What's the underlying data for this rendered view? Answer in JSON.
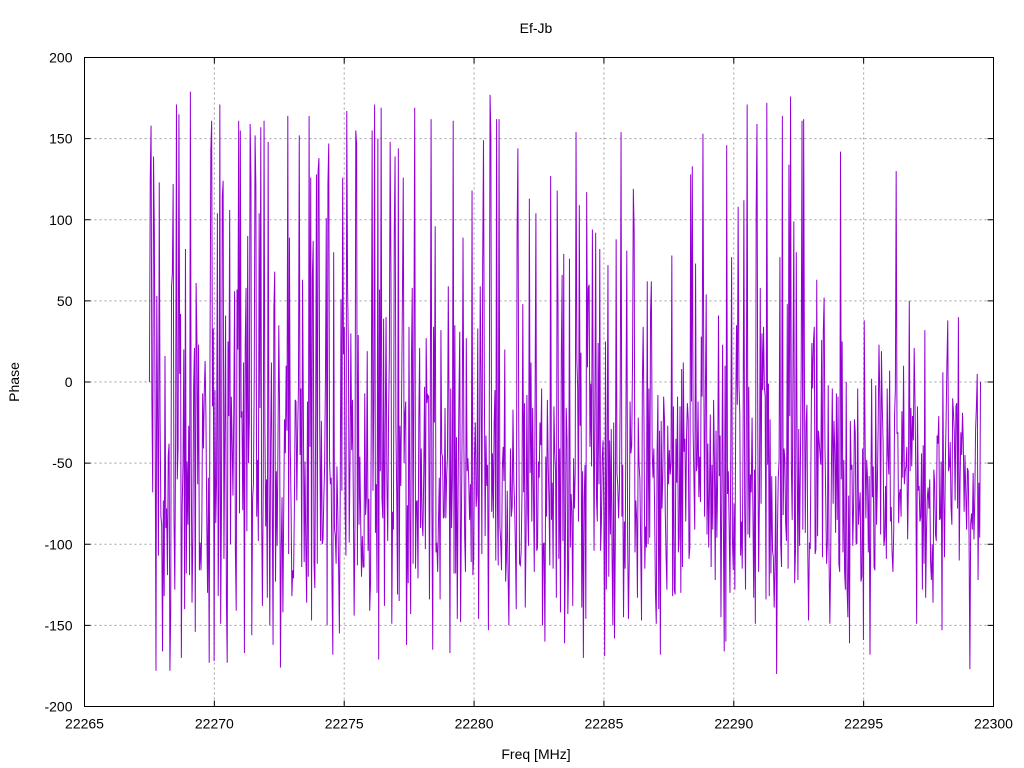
{
  "chart_data": {
    "type": "line",
    "title": "Ef-Jb",
    "xlabel": "Freq [MHz]",
    "ylabel": "Phase",
    "xlim": [
      22265,
      22300
    ],
    "ylim": [
      -200,
      200
    ],
    "x_ticks": [
      22265,
      22270,
      22275,
      22280,
      22285,
      22290,
      22295,
      22300
    ],
    "y_ticks": [
      -200,
      -150,
      -100,
      -50,
      0,
      50,
      100,
      150,
      200
    ],
    "grid": true,
    "legend": "none",
    "series": [
      {
        "color": "#9400d3",
        "x_start": 22267.5,
        "x_end": 22299.5,
        "values": [
          0,
          126,
          158,
          -10,
          -68,
          139,
          92,
          -30,
          -178,
          53,
          -23,
          -107,
          123,
          -22,
          -83,
          -88,
          -166,
          -73,
          -132,
          16,
          -90,
          -78,
          -119,
          -45,
          -38,
          -178,
          -141,
          59,
          67,
          122,
          -83,
          -128,
          -31,
          171,
          -60,
          -41,
          165,
          5,
          42,
          -170,
          -77,
          -51,
          20,
          -140,
          82,
          -118,
          -49,
          -88,
          -27,
          -119,
          179,
          -45,
          -136,
          -97,
          -2,
          21,
          -154,
          61,
          26,
          -63,
          23,
          -116,
          -99,
          -116,
          -87,
          -7,
          -41,
          -6,
          13,
          -21,
          -84,
          -130,
          -59,
          -173,
          20,
          143,
          161,
          -15,
          33,
          -172,
          -5,
          -87,
          -60,
          104,
          -132,
          -68,
          171,
          -149,
          -78,
          114,
          124,
          -109,
          -31,
          41,
          -133,
          -173,
          25,
          -21,
          106,
          -100,
          -9,
          -36,
          -70,
          -18,
          56,
          -105,
          -141,
          57,
          20,
          161,
          -81,
          155,
          -22,
          -18,
          -79,
          12,
          -167,
          23,
          58,
          -92,
          90,
          -50,
          -24,
          159,
          124,
          -156,
          -72,
          -63,
          2,
          152,
          121,
          -83,
          -48,
          -98,
          104,
          -16,
          157,
          -79,
          -138,
          -63,
          161,
          -28,
          -89,
          -60,
          -133,
          148,
          -53,
          -150,
          -36,
          12,
          -73,
          -162,
          45,
          68,
          -123,
          -55,
          -101,
          -38,
          35,
          -20,
          -176,
          -103,
          -71,
          -142,
          -79,
          -23,
          -44,
          10,
          -30,
          164,
          -106,
          89,
          -39,
          -77,
          -132,
          -116,
          -121,
          -79,
          -11,
          -12,
          -73,
          -31,
          -4,
          152,
          -45,
          -4,
          -114,
          63,
          -17,
          -111,
          -49,
          -103,
          -136,
          -12,
          -120,
          164,
          -40,
          126,
          -147,
          65,
          87,
          -111,
          -127,
          -23,
          128,
          -112,
          130,
          138,
          -27,
          -98,
          -24,
          -100,
          -97,
          -72,
          -51,
          4,
          101,
          -150,
          122,
          147,
          -49,
          -63,
          -59,
          -125,
          -168,
          80,
          -90,
          -95,
          -112,
          -52,
          -79,
          -112,
          -155,
          -71,
          51,
          -67,
          126,
          17,
          34,
          -78,
          -107,
          167,
          59,
          20,
          -99,
          -48,
          30,
          -42,
          -11,
          -70,
          -144,
          -89,
          155,
          147,
          -113,
          29,
          -88,
          -46,
          -86,
          -120,
          -95,
          -114,
          -114,
          -7,
          -82,
          -71,
          19,
          -104,
          -72,
          -141,
          -124,
          -14,
          155,
          -67,
          -11,
          171,
          -93,
          -63,
          -130,
          150,
          -171,
          57,
          -55,
          169,
          -72,
          -84,
          39,
          -138,
          -28,
          40,
          -60,
          -98,
          -24,
          16,
          148,
          66,
          -149,
          -80,
          -91,
          90,
          139,
          -26,
          -68,
          -131,
          144,
          -135,
          -27,
          -64,
          -7,
          53,
          126,
          -50,
          -20,
          -12,
          -162,
          -76,
          -124,
          34,
          -82,
          -143,
          14,
          58,
          -112,
          24,
          169,
          -115,
          -74,
          -73,
          -121,
          -23,
          21,
          -90,
          -41,
          -86,
          -95,
          -57,
          -3,
          -103,
          27,
          -13,
          -8,
          -9,
          -134,
          -15,
          162,
          -79,
          -165,
          34,
          -25,
          96,
          -105,
          -99,
          -117,
          -86,
          -59,
          -134,
          32,
          -44,
          -46,
          -84,
          -83,
          -16,
          -84,
          -58,
          -46,
          59,
          -21,
          -167,
          -4,
          -90,
          -59,
          161,
          -118,
          35,
          -118,
          -34,
          -146,
          -64,
          -10,
          31,
          -148,
          -85,
          -23,
          89,
          -35,
          -96,
          -117,
          27,
          -55,
          -47,
          -61,
          -85,
          -63,
          -111,
          118,
          -119,
          -109,
          -46,
          -25,
          -77,
          -69,
          33,
          -146,
          -56,
          59,
          3,
          -106,
          73,
          149,
          4,
          -95,
          -33,
          -64,
          -51,
          -153,
          -39,
          177,
          152,
          -80,
          -44,
          -84,
          -26,
          -5,
          -110,
          162,
          -75,
          -113,
          162,
          -89,
          -98,
          -116,
          -53,
          -40,
          -61,
          20,
          -123,
          -109,
          -67,
          -118,
          -150,
          -83,
          -41,
          -83,
          -77,
          -17,
          -61,
          -76,
          -103,
          -140,
          91,
          144,
          -21,
          -112,
          -113,
          -104,
          -69,
          48,
          -68,
          -13,
          -139,
          -93,
          -8,
          -80,
          -101,
          113,
          -56,
          12,
          -86,
          -16,
          -66,
          -117,
          -12,
          104,
          -104,
          -102,
          -49,
          -59,
          -25,
          -39,
          -4,
          -150,
          -100,
          -99,
          -160,
          -46,
          -83,
          -11,
          -51,
          -74,
          -113,
          127,
          -85,
          -62,
          -115,
          -15,
          -43,
          -55,
          -133,
          118,
          46,
          -109,
          -41,
          -142,
          16,
          66,
          -98,
          79,
          -161,
          -99,
          -16,
          -36,
          -143,
          -110,
          76,
          -102,
          -69,
          -80,
          -138,
          -47,
          -78,
          -56,
          154,
          14,
          -3,
          -86,
          109,
          -27,
          18,
          -139,
          -55,
          -170,
          -71,
          -51,
          -146,
          117,
          9,
          58,
          60,
          -40,
          -1,
          -52,
          94,
          -7,
          -104,
          -17,
          92,
          -72,
          -86,
          24,
          -63,
          82,
          -104,
          -86,
          -47,
          -36,
          -83,
          -169,
          25,
          -128,
          -46,
          72,
          -120,
          -36,
          -94,
          -29,
          -107,
          -150,
          -25,
          -158,
          -98,
          88,
          -56,
          -64,
          -84,
          -65,
          -6,
          154,
          -83,
          -51,
          -145,
          -86,
          -115,
          -15,
          81,
          -95,
          -146,
          -110,
          -12,
          -44,
          -39,
          11,
          119,
          93,
          -105,
          -73,
          -84,
          -133,
          -22,
          -51,
          -60,
          -102,
          -147,
          -2,
          34,
          -24,
          -115,
          -89,
          -102,
          62,
          -100,
          -4,
          -96,
          43,
          62,
          -42,
          -59,
          -41,
          -80,
          -130,
          -149,
          -43,
          -8,
          -140,
          -30,
          -168,
          -24,
          -78,
          -56,
          -9,
          -23,
          -80,
          -108,
          -128,
          -27,
          -63,
          -42,
          -57,
          -50,
          78,
          -132,
          -15,
          -128,
          -131,
          -35,
          -62,
          -9,
          -105,
          -96,
          -15,
          -130,
          8,
          -114,
          12,
          -43,
          -35,
          -86,
          -33,
          -13,
          -23,
          -109,
          -102,
          128,
          -12,
          133,
          -30,
          -60,
          -91,
          73,
          -55,
          -51,
          -12,
          -71,
          -46,
          -74,
          28,
          -9,
          153,
          9,
          -83,
          -7,
          54,
          -94,
          -38,
          -102,
          -66,
          -20,
          -114,
          -51,
          -91,
          -11,
          -47,
          -122,
          -30,
          -96,
          -59,
          41,
          -58,
          -33,
          -145,
          -72,
          23,
          -89,
          -166,
          10,
          -160,
          146,
          -69,
          -55,
          -88,
          -130,
          -43,
          77,
          -96,
          -116,
          -75,
          -128,
          -22,
          35,
          -14,
          108,
          -2,
          -19,
          -107,
          -86,
          -115,
          -37,
          112,
          -78,
          -128,
          -21,
          171,
          -94,
          -3,
          -96,
          -57,
          -68,
          -22,
          -78,
          -133,
          -54,
          -149,
          104,
          159,
          -33,
          -117,
          -71,
          58,
          -75,
          30,
          -5,
          34,
          -3,
          -9,
          -134,
          172,
          -51,
          -1,
          -132,
          -23,
          -118,
          -58,
          -104,
          -108,
          -139,
          -112,
          -58,
          -180,
          -92,
          -59,
          -48,
          77,
          -100,
          -114,
          164,
          -82,
          -41,
          -47,
          -87,
          -98,
          48,
          -115,
          134,
          -21,
          176,
          -52,
          -85,
          13,
          99,
          -124,
          -105,
          80,
          -38,
          -122,
          -29,
          -101,
          -52,
          9,
          161,
          -91,
          162,
          -3,
          -93,
          -25,
          -14,
          -103,
          -147,
          -99,
          -103,
          -40,
          24,
          -4,
          25,
          34,
          -106,
          -103,
          63,
          -95,
          -30,
          -37,
          -44,
          -51,
          26,
          -108,
          31,
          52,
          -39,
          -73,
          -112,
          -99,
          -2,
          -110,
          -149,
          -110,
          -48,
          -4,
          -75,
          -24,
          -42,
          -93,
          -7,
          -85,
          -9,
          -112,
          -117,
          142,
          -60,
          25,
          -105,
          -48,
          -117,
          -128,
          0,
          -127,
          -145,
          -70,
          -161,
          -24,
          -54,
          -51,
          -101,
          -76,
          -23,
          -31,
          -99,
          -100,
          -4,
          -88,
          -77,
          -68,
          -123,
          -120,
          -41,
          -159,
          38,
          -32,
          -84,
          -48,
          -59,
          -105,
          -58,
          -168,
          -84,
          2,
          -71,
          -52,
          -114,
          -116,
          -2,
          -88,
          -64,
          -27,
          23,
          -9,
          -94,
          19,
          -15,
          -37,
          -101,
          -96,
          -64,
          -109,
          -4,
          -45,
          -57,
          7,
          -86,
          -77,
          -105,
          -117,
          -92,
          -21,
          -5,
          130,
          -32,
          -31,
          -87,
          -69,
          -66,
          -83,
          -18,
          -59,
          10,
          -63,
          -55,
          -52,
          -40,
          -97,
          -60,
          50,
          -55,
          -16,
          -52,
          -21,
          -36,
          21,
          -13,
          -58,
          -149,
          -15,
          -67,
          -64,
          -86,
          -83,
          -44,
          -128,
          -39,
          -112,
          32,
          -133,
          -92,
          -72,
          -65,
          -78,
          -60,
          -111,
          -122,
          -100,
          -136,
          -54,
          -62,
          -94,
          -98,
          -33,
          -38,
          -21,
          -85,
          -84,
          -49,
          -153,
          6,
          -70,
          -108,
          -51,
          -23,
          12,
          38,
          -55,
          -52,
          -37,
          -77,
          -88,
          -10,
          -19,
          -31,
          -73,
          -15,
          -13,
          -78,
          40,
          -110,
          -62,
          -31,
          -45,
          -19,
          -38,
          -80,
          -45,
          -69,
          -91,
          -53,
          -55,
          -95,
          -177,
          -87,
          -81,
          -91,
          -56,
          -97,
          -73,
          -29,
          -15,
          5,
          -122,
          -62,
          -96,
          0
        ]
      }
    ]
  }
}
